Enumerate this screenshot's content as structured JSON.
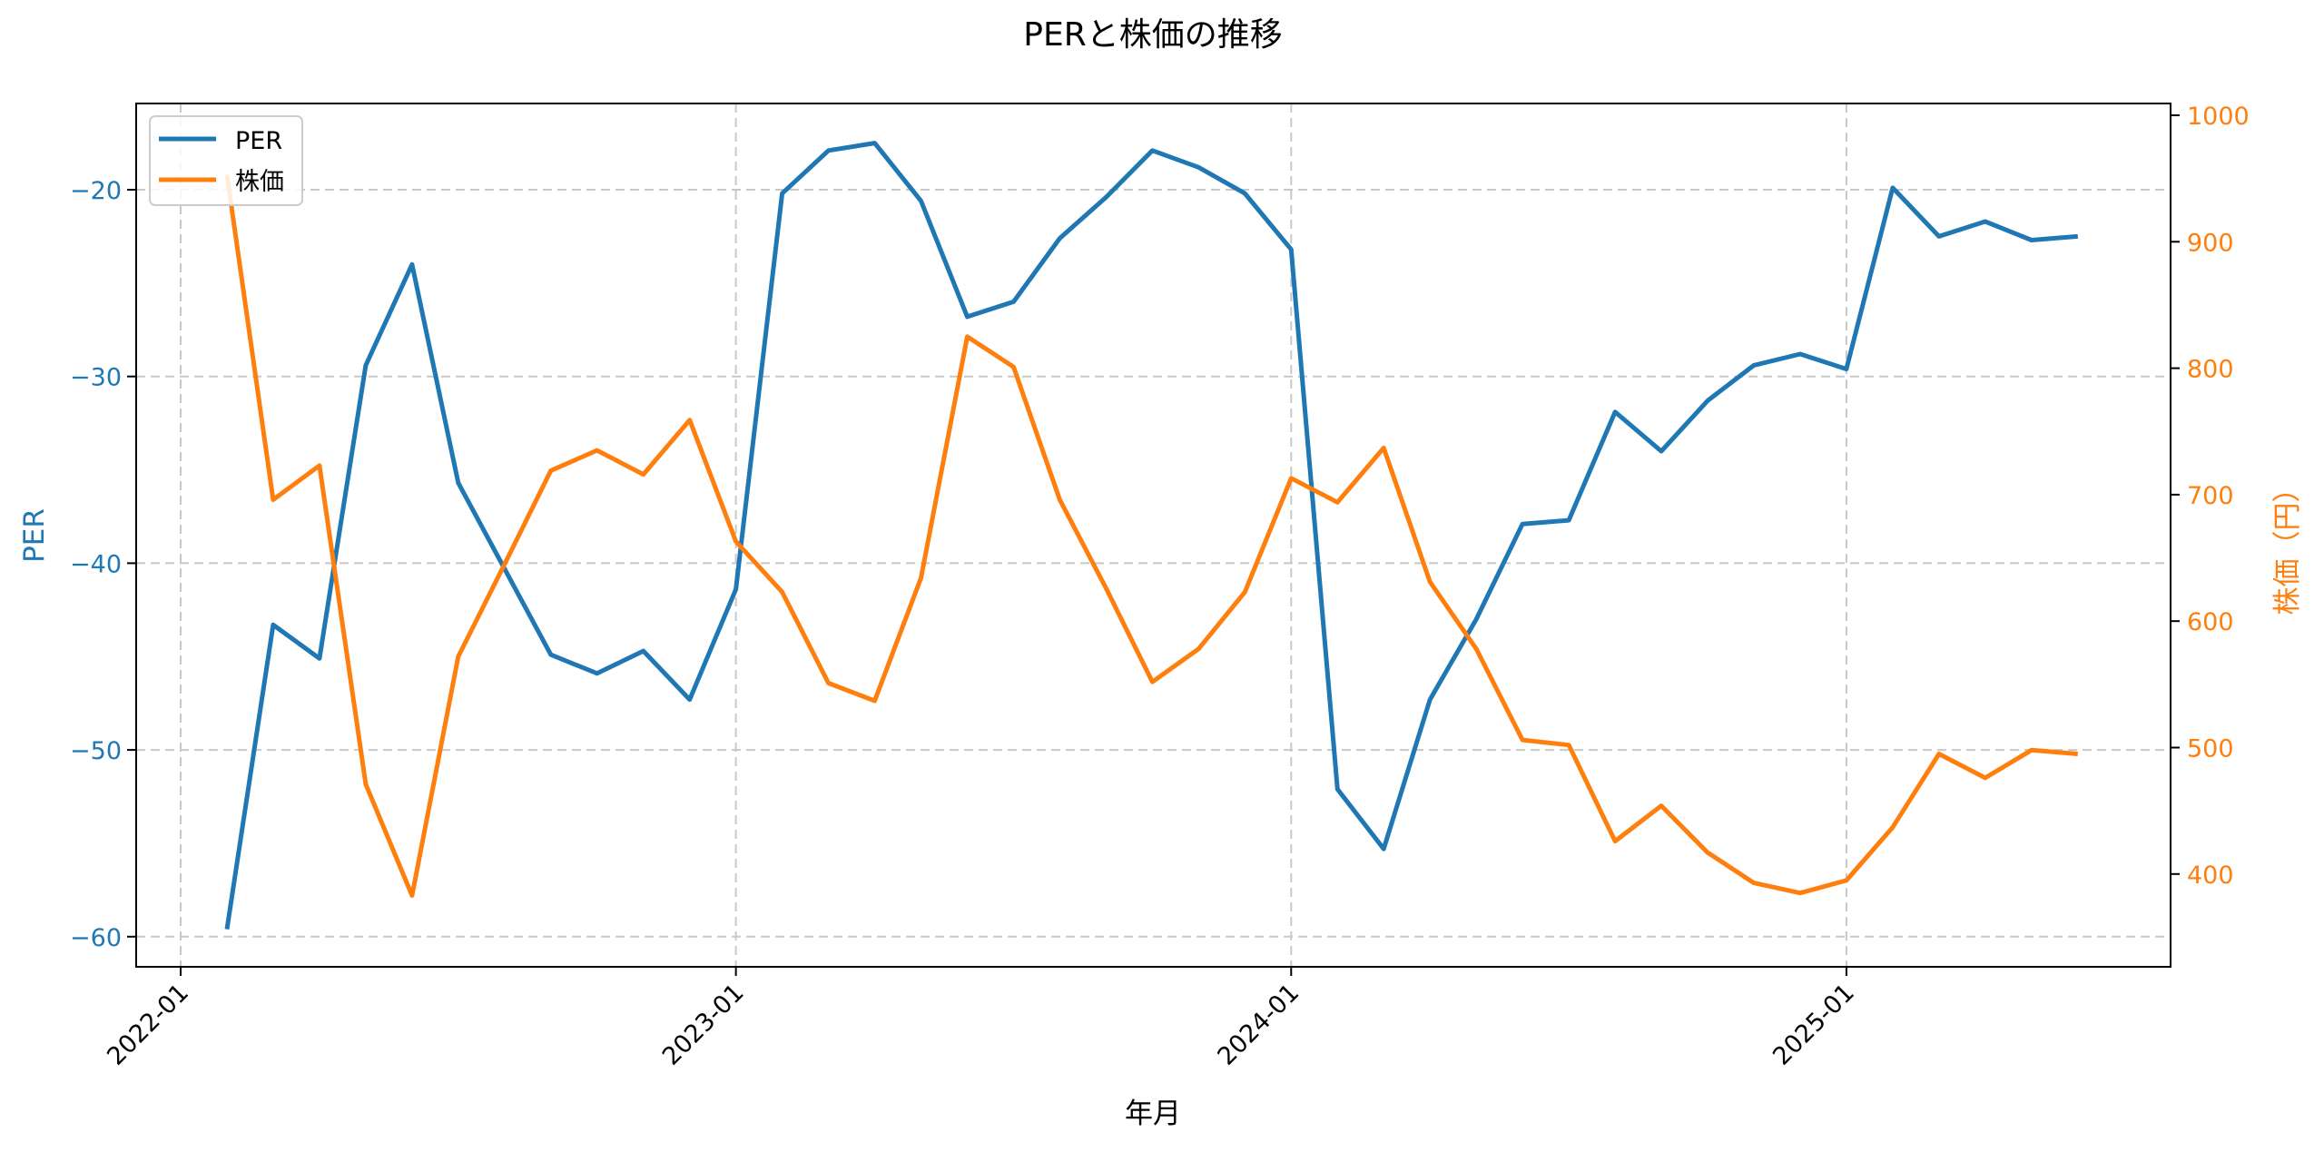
{
  "chart_data": {
    "type": "line",
    "title": "PERと株価の推移",
    "xlabel": "年月",
    "ylabel": "PER",
    "ylabel_right": "株価（円）",
    "x": [
      "2022-02",
      "2022-03",
      "2022-04",
      "2022-05",
      "2022-06",
      "2022-07",
      "2022-08",
      "2022-09",
      "2022-10",
      "2022-11",
      "2022-12",
      "2023-01",
      "2023-02",
      "2023-03",
      "2023-04",
      "2023-05",
      "2023-06",
      "2023-07",
      "2023-08",
      "2023-09",
      "2023-10",
      "2023-11",
      "2023-12",
      "2024-01",
      "2024-02",
      "2024-03",
      "2024-04",
      "2024-05",
      "2024-06",
      "2024-07",
      "2024-08",
      "2024-09",
      "2024-10",
      "2024-11",
      "2024-12",
      "2025-01",
      "2025-02",
      "2025-03",
      "2025-04",
      "2025-05",
      "2025-06"
    ],
    "series": [
      {
        "name": "PER",
        "axis": "left",
        "color": "#1f77b4",
        "values": [
          -59.6,
          -43.3,
          -45.1,
          -29.4,
          -24.0,
          -35.7,
          -40.3,
          -44.9,
          -45.9,
          -44.7,
          -47.3,
          -41.4,
          -20.2,
          -17.9,
          -17.5,
          -20.6,
          -26.8,
          -26.0,
          -22.6,
          -20.4,
          -17.9,
          -18.8,
          -20.2,
          -23.2,
          -52.1,
          -55.3,
          -47.3,
          -43.0,
          -37.9,
          -37.7,
          -31.9,
          -34.0,
          -31.3,
          -29.4,
          -28.8,
          -29.6,
          -19.9,
          -22.5,
          -21.7,
          -22.7,
          -22.5
        ]
      },
      {
        "name": "株価",
        "axis": "right",
        "color": "#ff7f0e",
        "values": [
          953,
          696,
          723,
          471,
          383,
          572,
          645,
          719,
          735,
          716,
          759,
          663,
          623,
          551,
          537,
          634,
          825,
          801,
          696,
          626,
          552,
          578,
          623,
          713,
          694,
          737,
          631,
          578,
          506,
          502,
          426,
          454,
          417,
          393,
          385,
          395,
          437,
          495,
          476,
          498,
          495
        ]
      }
    ],
    "xticks": [
      "2022-01",
      "2023-01",
      "2024-01",
      "2025-01"
    ],
    "yticks_left": [
      -20,
      -30,
      -40,
      -50,
      -60
    ],
    "yticks_right": [
      1000,
      900,
      800,
      700,
      600,
      500,
      400
    ],
    "ylim_left": [
      -61.6,
      -15.4
    ],
    "ylim_right": [
      325,
      1015
    ],
    "grid": true,
    "legend_position": "upper left",
    "legend": [
      "PER",
      "株価"
    ]
  }
}
